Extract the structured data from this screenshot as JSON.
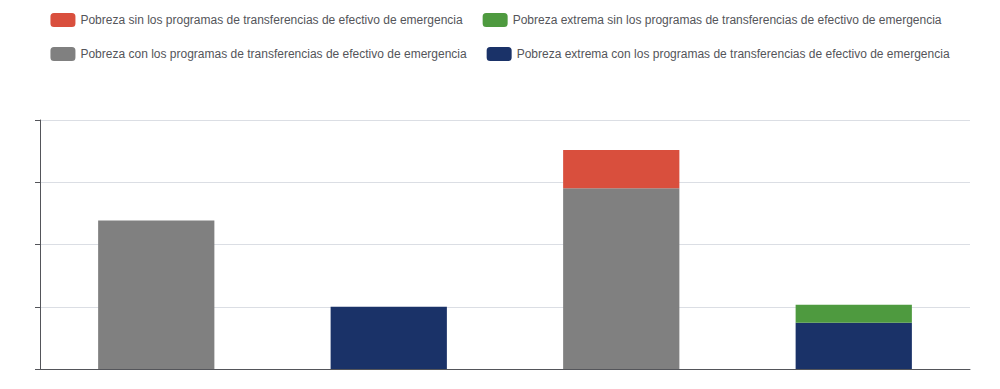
{
  "chart_data": {
    "type": "bar",
    "categories": [
      null,
      null,
      null,
      null
    ],
    "series": [
      {
        "name": "Pobreza sin los programas de transferencias de efectivo de emergencia",
        "color": "#d94f3d",
        "values": [
          null,
          null,
          9.5,
          null
        ]
      },
      {
        "name": "Pobreza extrema sin los programas de transferencias de efectivo de emergencia",
        "color": "#4e9a3f",
        "values": [
          null,
          null,
          null,
          4.5
        ]
      },
      {
        "name": "Pobreza con los programas de transferencias de efectivo de emergencia",
        "color": "#808080",
        "values": [
          37.0,
          null,
          45.0,
          null
        ]
      },
      {
        "name": "Pobreza extrema con los programas de transferencias de efectivo de emergencia",
        "color": "#1a3268",
        "values": [
          null,
          15.5,
          null,
          11.5
        ]
      }
    ],
    "ylim": [
      0,
      62
    ],
    "yticks": [
      0,
      15.5,
      31,
      46.5,
      62
    ],
    "stacked": true,
    "grid": true,
    "legend": "top",
    "tick_labels": false
  }
}
